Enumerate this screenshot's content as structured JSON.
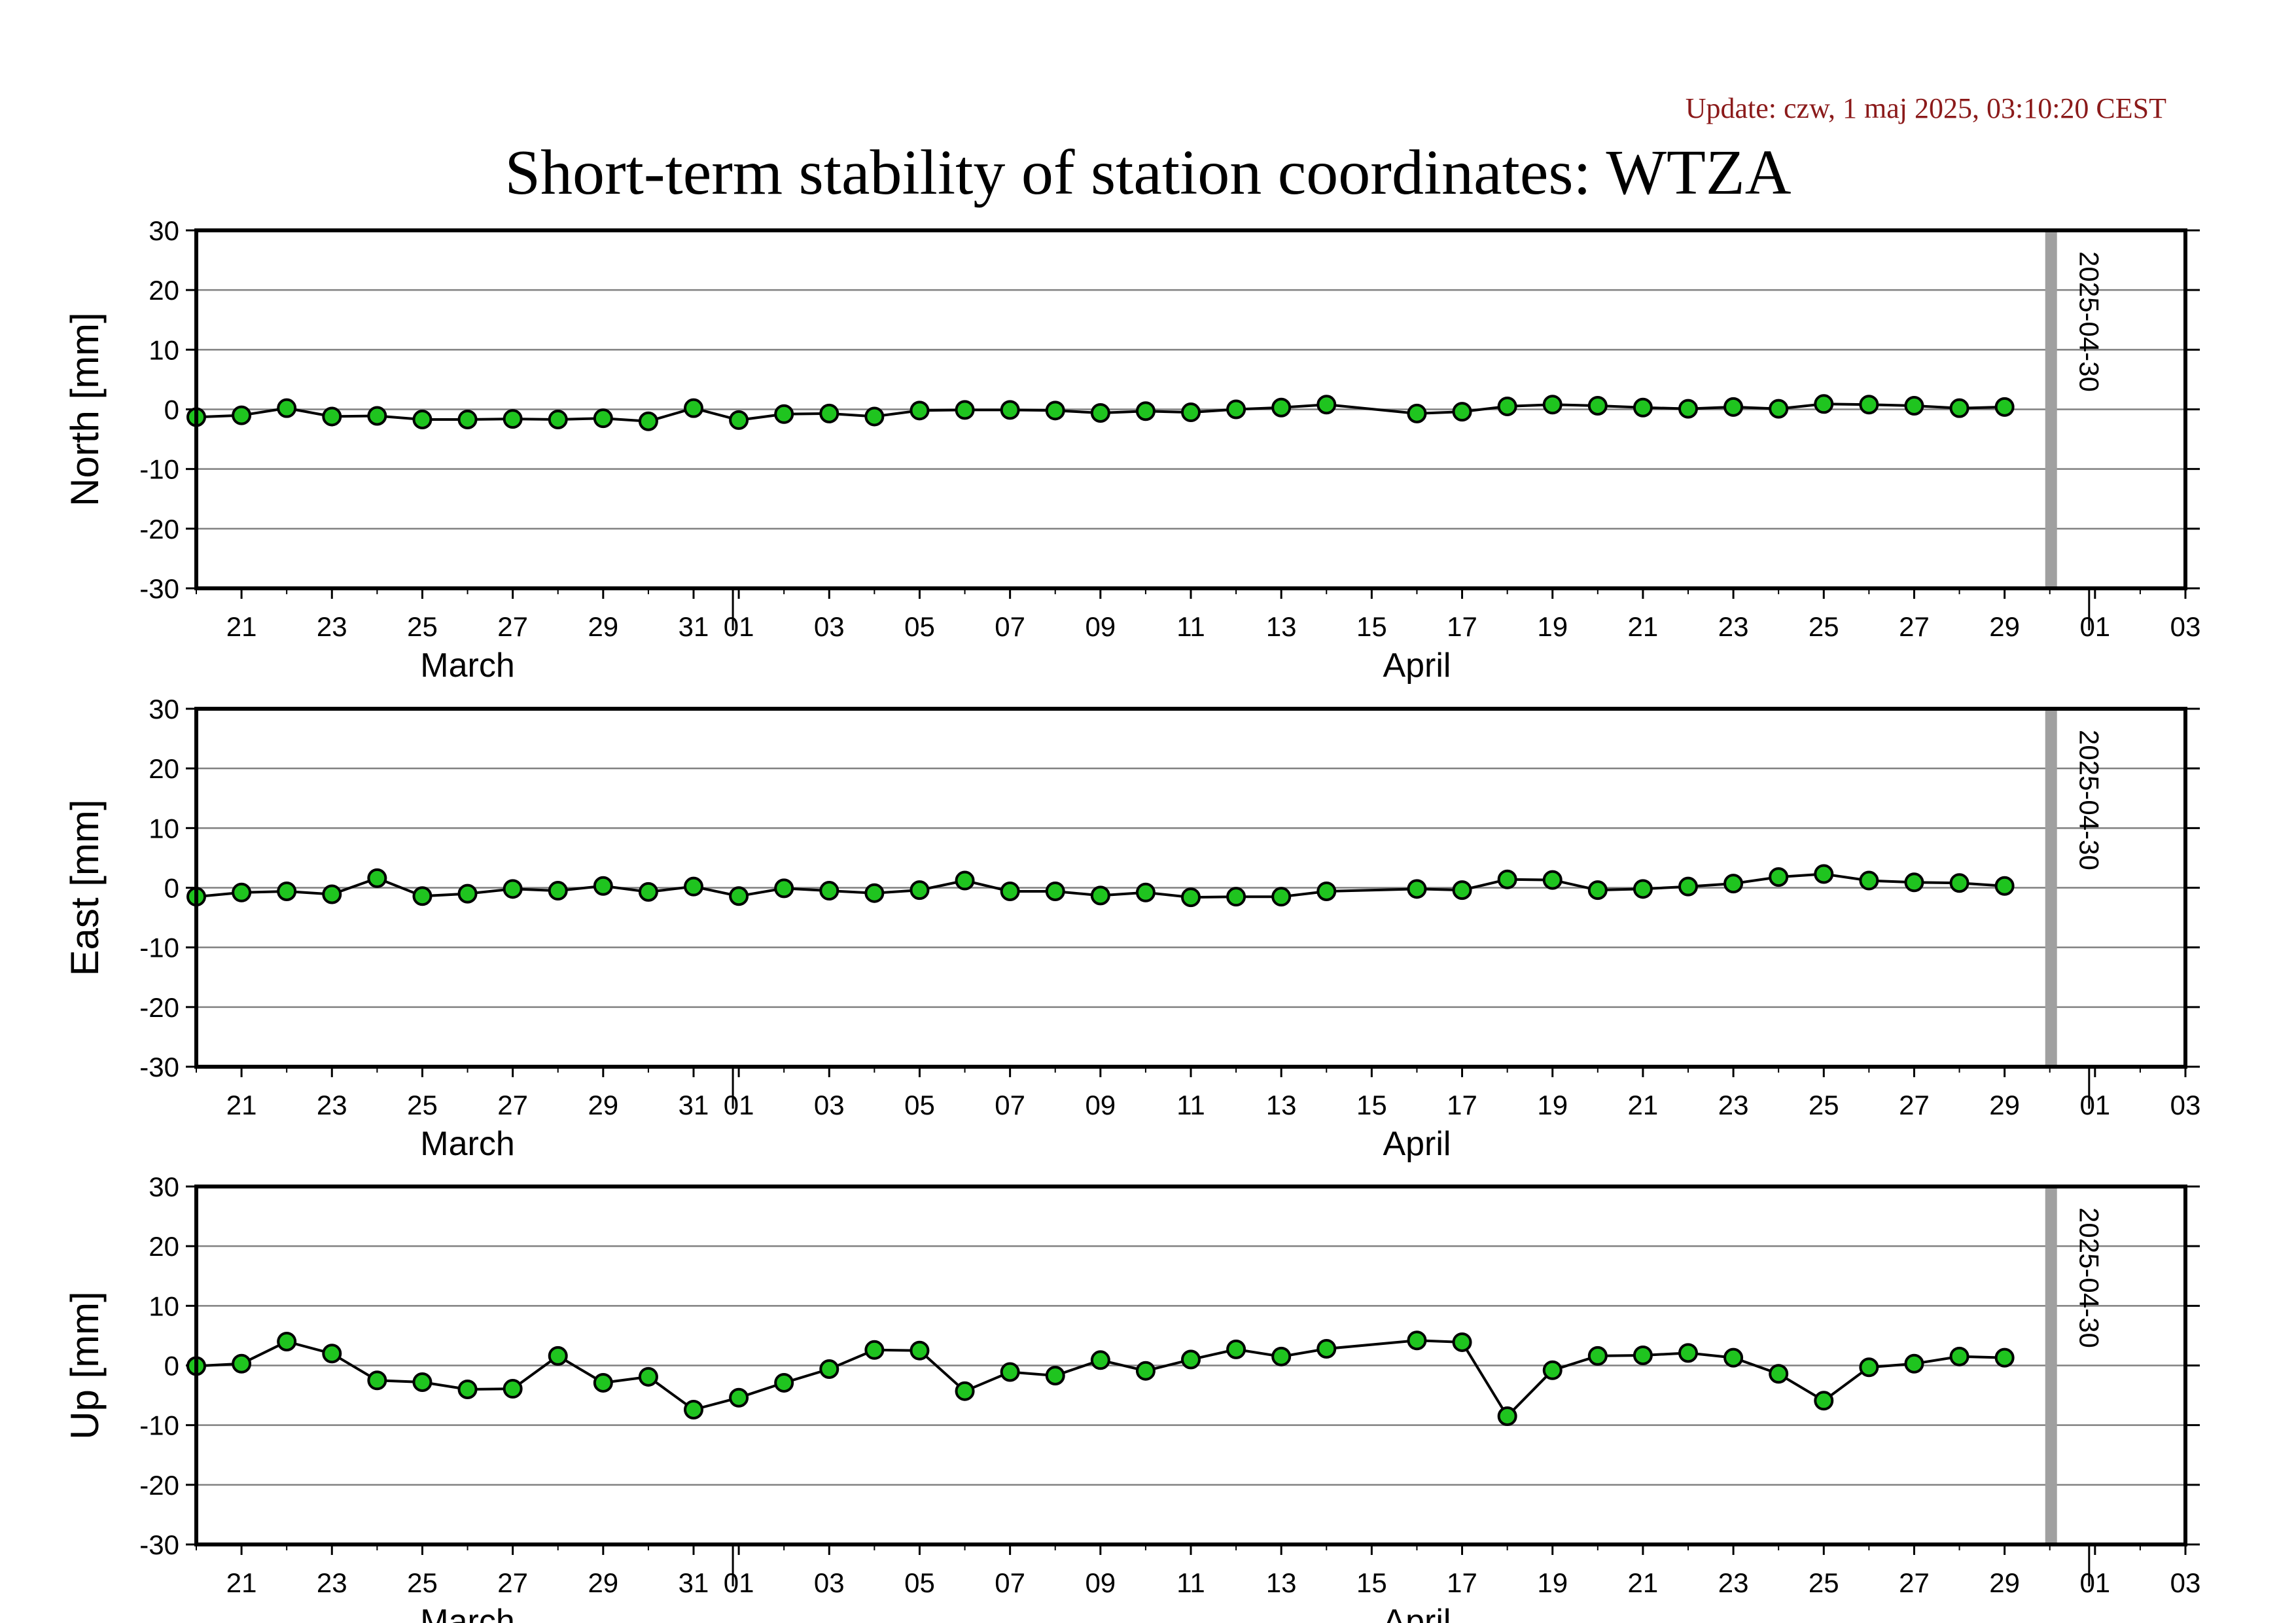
{
  "update_text": "Update: czw, 1 maj 2025, 03:10:20 CEST",
  "title": "Short-term stability of station coordinates: WTZA",
  "colors": {
    "marker_fill": "#1fc41f",
    "marker_stroke": "#000000",
    "line": "#000000",
    "grid": "#808080",
    "marker_bar": "#a0a0a0",
    "update_text": "#8b1a1a"
  },
  "x_axis": {
    "start_date": "2025-03-20",
    "end_date": "2025-05-03",
    "tick_labels": [
      {
        "date": "2025-03-21",
        "label": "21"
      },
      {
        "date": "2025-03-23",
        "label": "23"
      },
      {
        "date": "2025-03-25",
        "label": "25"
      },
      {
        "date": "2025-03-27",
        "label": "27"
      },
      {
        "date": "2025-03-29",
        "label": "29"
      },
      {
        "date": "2025-03-31",
        "label": "31"
      },
      {
        "date": "2025-04-01",
        "label": "01"
      },
      {
        "date": "2025-04-03",
        "label": "03"
      },
      {
        "date": "2025-04-05",
        "label": "05"
      },
      {
        "date": "2025-04-07",
        "label": "07"
      },
      {
        "date": "2025-04-09",
        "label": "09"
      },
      {
        "date": "2025-04-11",
        "label": "11"
      },
      {
        "date": "2025-04-13",
        "label": "13"
      },
      {
        "date": "2025-04-15",
        "label": "15"
      },
      {
        "date": "2025-04-17",
        "label": "17"
      },
      {
        "date": "2025-04-19",
        "label": "19"
      },
      {
        "date": "2025-04-21",
        "label": "21"
      },
      {
        "date": "2025-04-23",
        "label": "23"
      },
      {
        "date": "2025-04-25",
        "label": "25"
      },
      {
        "date": "2025-04-27",
        "label": "27"
      },
      {
        "date": "2025-04-29",
        "label": "29"
      },
      {
        "date": "2025-05-01",
        "label": "01"
      },
      {
        "date": "2025-05-03",
        "label": "03"
      }
    ],
    "month_boundaries": [
      "2025-04-01",
      "2025-05-01"
    ],
    "month_labels": [
      {
        "date": "2025-03-26",
        "label": "March"
      },
      {
        "date": "2025-04-16",
        "label": "April"
      }
    ]
  },
  "chart_data": [
    {
      "type": "line",
      "ylabel": "North [mm]",
      "ylim": [
        -30,
        30
      ],
      "yticks": [
        30,
        20,
        10,
        0,
        -10,
        -20,
        -30
      ],
      "grid": true,
      "marker_date": "2025-04-30",
      "marker_label": "2025-04-30",
      "points": [
        [
          "2025-03-20",
          -1.3
        ],
        [
          "2025-03-21",
          -1.0
        ],
        [
          "2025-03-22",
          0.2
        ],
        [
          "2025-03-23",
          -1.2
        ],
        [
          "2025-03-24",
          -1.1
        ],
        [
          "2025-03-25",
          -1.7
        ],
        [
          "2025-03-26",
          -1.7
        ],
        [
          "2025-03-27",
          -1.6
        ],
        [
          "2025-03-28",
          -1.7
        ],
        [
          "2025-03-29",
          -1.5
        ],
        [
          "2025-03-30",
          -2.0
        ],
        [
          "2025-03-31",
          0.2
        ],
        [
          "2025-04-01",
          -1.8
        ],
        [
          "2025-04-02",
          -0.8
        ],
        [
          "2025-04-03",
          -0.7
        ],
        [
          "2025-04-04",
          -1.2
        ],
        [
          "2025-04-05",
          -0.2
        ],
        [
          "2025-04-06",
          -0.1
        ],
        [
          "2025-04-07",
          -0.1
        ],
        [
          "2025-04-08",
          -0.2
        ],
        [
          "2025-04-09",
          -0.6
        ],
        [
          "2025-04-10",
          -0.3
        ],
        [
          "2025-04-11",
          -0.5
        ],
        [
          "2025-04-12",
          0.0
        ],
        [
          "2025-04-13",
          0.3
        ],
        [
          "2025-04-14",
          0.8
        ],
        [
          "2025-04-16",
          -0.7
        ],
        [
          "2025-04-17",
          -0.4
        ],
        [
          "2025-04-18",
          0.5
        ],
        [
          "2025-04-19",
          0.8
        ],
        [
          "2025-04-20",
          0.6
        ],
        [
          "2025-04-21",
          0.3
        ],
        [
          "2025-04-22",
          0.1
        ],
        [
          "2025-04-23",
          0.4
        ],
        [
          "2025-04-24",
          0.1
        ],
        [
          "2025-04-25",
          0.9
        ],
        [
          "2025-04-26",
          0.8
        ],
        [
          "2025-04-27",
          0.6
        ],
        [
          "2025-04-28",
          0.2
        ],
        [
          "2025-04-29",
          0.4
        ]
      ]
    },
    {
      "type": "line",
      "ylabel": "East [mm]",
      "ylim": [
        -30,
        30
      ],
      "yticks": [
        30,
        20,
        10,
        0,
        -10,
        -20,
        -30
      ],
      "grid": true,
      "marker_date": "2025-04-30",
      "marker_label": "2025-04-30",
      "points": [
        [
          "2025-03-20",
          -1.5
        ],
        [
          "2025-03-21",
          -0.8
        ],
        [
          "2025-03-22",
          -0.6
        ],
        [
          "2025-03-23",
          -1.1
        ],
        [
          "2025-03-24",
          1.6
        ],
        [
          "2025-03-25",
          -1.4
        ],
        [
          "2025-03-26",
          -1.0
        ],
        [
          "2025-03-27",
          -0.2
        ],
        [
          "2025-03-28",
          -0.5
        ],
        [
          "2025-03-29",
          0.3
        ],
        [
          "2025-03-30",
          -0.7
        ],
        [
          "2025-03-31",
          0.2
        ],
        [
          "2025-04-01",
          -1.4
        ],
        [
          "2025-04-02",
          -0.1
        ],
        [
          "2025-04-03",
          -0.5
        ],
        [
          "2025-04-04",
          -0.9
        ],
        [
          "2025-04-05",
          -0.4
        ],
        [
          "2025-04-06",
          1.2
        ],
        [
          "2025-04-07",
          -0.6
        ],
        [
          "2025-04-08",
          -0.6
        ],
        [
          "2025-04-09",
          -1.3
        ],
        [
          "2025-04-10",
          -0.8
        ],
        [
          "2025-04-11",
          -1.6
        ],
        [
          "2025-04-12",
          -1.5
        ],
        [
          "2025-04-13",
          -1.5
        ],
        [
          "2025-04-14",
          -0.6
        ],
        [
          "2025-04-16",
          -0.2
        ],
        [
          "2025-04-17",
          -0.4
        ],
        [
          "2025-04-18",
          1.4
        ],
        [
          "2025-04-19",
          1.3
        ],
        [
          "2025-04-20",
          -0.4
        ],
        [
          "2025-04-21",
          -0.2
        ],
        [
          "2025-04-22",
          0.2
        ],
        [
          "2025-04-23",
          0.7
        ],
        [
          "2025-04-24",
          1.8
        ],
        [
          "2025-04-25",
          2.3
        ],
        [
          "2025-04-26",
          1.2
        ],
        [
          "2025-04-27",
          0.9
        ],
        [
          "2025-04-28",
          0.8
        ],
        [
          "2025-04-29",
          0.3
        ]
      ]
    },
    {
      "type": "line",
      "ylabel": "Up [mm]",
      "ylim": [
        -30,
        30
      ],
      "yticks": [
        30,
        20,
        10,
        0,
        -10,
        -20,
        -30
      ],
      "grid": true,
      "marker_date": "2025-04-30",
      "marker_label": "2025-04-30",
      "points": [
        [
          "2025-03-20",
          -0.1
        ],
        [
          "2025-03-21",
          0.3
        ],
        [
          "2025-03-22",
          4.0
        ],
        [
          "2025-03-23",
          2.0
        ],
        [
          "2025-03-24",
          -2.5
        ],
        [
          "2025-03-25",
          -2.8
        ],
        [
          "2025-03-26",
          -4.0
        ],
        [
          "2025-03-27",
          -3.9
        ],
        [
          "2025-03-28",
          1.6
        ],
        [
          "2025-03-29",
          -2.9
        ],
        [
          "2025-03-30",
          -1.9
        ],
        [
          "2025-03-31",
          -7.4
        ],
        [
          "2025-04-01",
          -5.4
        ],
        [
          "2025-04-02",
          -2.9
        ],
        [
          "2025-04-03",
          -0.6
        ],
        [
          "2025-04-04",
          2.6
        ],
        [
          "2025-04-05",
          2.5
        ],
        [
          "2025-04-06",
          -4.3
        ],
        [
          "2025-04-07",
          -1.1
        ],
        [
          "2025-04-08",
          -1.7
        ],
        [
          "2025-04-09",
          0.9
        ],
        [
          "2025-04-10",
          -0.9
        ],
        [
          "2025-04-11",
          1.0
        ],
        [
          "2025-04-12",
          2.7
        ],
        [
          "2025-04-13",
          1.5
        ],
        [
          "2025-04-14",
          2.8
        ],
        [
          "2025-04-16",
          4.2
        ],
        [
          "2025-04-17",
          3.9
        ],
        [
          "2025-04-18",
          -8.5
        ],
        [
          "2025-04-19",
          -0.8
        ],
        [
          "2025-04-20",
          1.6
        ],
        [
          "2025-04-21",
          1.7
        ],
        [
          "2025-04-22",
          2.1
        ],
        [
          "2025-04-23",
          1.3
        ],
        [
          "2025-04-24",
          -1.4
        ],
        [
          "2025-04-25",
          -5.9
        ],
        [
          "2025-04-26",
          -0.3
        ],
        [
          "2025-04-27",
          0.3
        ],
        [
          "2025-04-28",
          1.5
        ],
        [
          "2025-04-29",
          1.3
        ]
      ]
    }
  ]
}
